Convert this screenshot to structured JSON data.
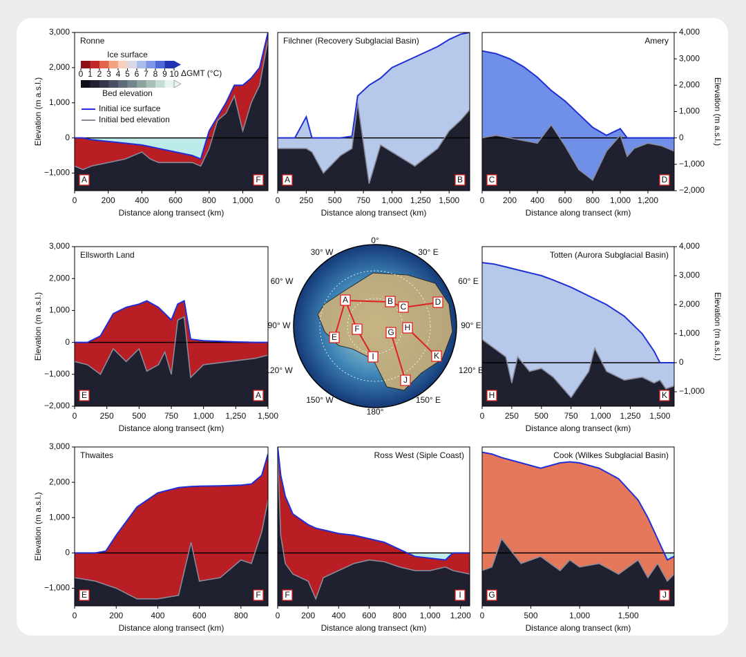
{
  "chart_data": [
    {
      "type": "area",
      "title": "Ronne",
      "xlabel": "Distance along transect (km)",
      "ylabel": "Elevation (m a.s.l.)",
      "start": "A",
      "end": "F",
      "fill_color": "#b81e24",
      "xlim": [
        0,
        1150
      ],
      "xticks": [
        0,
        200,
        400,
        600,
        800,
        {
          "value": 1000,
          "label": "1,000"
        }
      ],
      "ylim": [
        -1500,
        3000
      ],
      "yticks": [
        {
          "value": -1000,
          "label": "−1,000"
        },
        0,
        {
          "value": 1000,
          "label": "1,000"
        },
        {
          "value": 2000,
          "label": "2,000"
        },
        {
          "value": 3000,
          "label": "3,000"
        }
      ],
      "x": [
        0,
        50,
        100,
        200,
        300,
        400,
        450,
        500,
        600,
        700,
        750,
        800,
        850,
        900,
        950,
        1000,
        1050,
        1100,
        1150
      ],
      "surface": [
        0,
        0,
        -50,
        -100,
        -150,
        -200,
        -250,
        -300,
        -400,
        -500,
        -600,
        200,
        600,
        1000,
        1500,
        1500,
        1700,
        2000,
        3000
      ],
      "bed": [
        -800,
        -900,
        -800,
        -700,
        -600,
        -400,
        -600,
        -700,
        -700,
        -700,
        -800,
        -300,
        500,
        700,
        1200,
        200,
        1000,
        1500,
        2800
      ],
      "legend": [
        {
          "name": "Initial ice surface",
          "color": "#1f2fd6"
        },
        {
          "name": "Initial bed elevation",
          "color": "#8a8a9a"
        }
      ],
      "colorbar": {
        "title": "ΔGMT (°C)",
        "ice_label": "Ice surface",
        "bed_label": "Bed elevation",
        "ticks": [
          0,
          1,
          2,
          3,
          4,
          5,
          6,
          7,
          8,
          9,
          10
        ],
        "ice_colors": [
          "#8b0f14",
          "#c0282a",
          "#e0654a",
          "#f2a482",
          "#f6d0bd",
          "#d8d8e6",
          "#a9bde8",
          "#7e98e6",
          "#4e6ad8",
          "#2234b0"
        ],
        "bed_colors": [
          "#0f0f18",
          "#222233",
          "#35364a",
          "#4a4f63",
          "#5f6b78",
          "#74878c",
          "#8ca39f",
          "#a8c0ba",
          "#c6dcd6",
          "#e6f4f2"
        ]
      }
    },
    {
      "type": "area",
      "title": "Filchner (Recovery Subglacial Basin)",
      "xlabel": "Distance along transect (km)",
      "start": "A",
      "end": "B",
      "fill_color": "#b7c9ea",
      "xlim": [
        0,
        1680
      ],
      "xticks": [
        0,
        250,
        500,
        750,
        {
          "value": 1000,
          "label": "1,000"
        },
        {
          "value": 1250,
          "label": "1,250"
        },
        {
          "value": 1500,
          "label": "1,500"
        }
      ],
      "ylim": [
        -1500,
        3000
      ],
      "x": [
        0,
        150,
        250,
        300,
        400,
        550,
        650,
        700,
        800,
        900,
        1000,
        1200,
        1400,
        1500,
        1600,
        1680
      ],
      "surface": [
        0,
        0,
        600,
        0,
        0,
        0,
        50,
        1200,
        1500,
        1700,
        2000,
        2300,
        2600,
        2800,
        2950,
        3000
      ],
      "bed": [
        -300,
        -300,
        -300,
        -400,
        -1000,
        -500,
        -300,
        1000,
        -1300,
        -200,
        -400,
        -800,
        -300,
        200,
        500,
        800
      ]
    },
    {
      "type": "area",
      "title": "Amery",
      "xlabel": "Distance along transect (km)",
      "ylabel": "Elevation (m a.s.l.)",
      "start": "C",
      "end": "D",
      "fill_color": "#6f8fe8",
      "xlim": [
        0,
        1390
      ],
      "xticks": [
        0,
        200,
        400,
        600,
        800,
        {
          "value": 1000,
          "label": "1,000"
        },
        {
          "value": 1200,
          "label": "1,200"
        }
      ],
      "ylim": [
        -2000,
        4000
      ],
      "yticks": [
        {
          "value": -2000,
          "label": "−2,000"
        },
        {
          "value": -1000,
          "label": "−1,000"
        },
        0,
        {
          "value": 1000,
          "label": "1,000"
        },
        {
          "value": 2000,
          "label": "2,000"
        },
        {
          "value": 3000,
          "label": "3,000"
        },
        {
          "value": 4000,
          "label": "4,000"
        }
      ],
      "x": [
        0,
        100,
        200,
        300,
        400,
        500,
        600,
        700,
        800,
        900,
        1000,
        1050,
        1100,
        1200,
        1300,
        1390
      ],
      "surface": [
        3300,
        3200,
        3000,
        2700,
        2300,
        1800,
        1400,
        900,
        400,
        100,
        350,
        0,
        0,
        0,
        0,
        0
      ],
      "bed": [
        0,
        100,
        0,
        -100,
        -200,
        500,
        -300,
        -1200,
        -1600,
        -500,
        100,
        -700,
        -400,
        -200,
        -300,
        -500
      ]
    },
    {
      "type": "area",
      "title": "Ellsworth Land",
      "xlabel": "Distance along transect (km)",
      "ylabel": "Elevation (m a.s.l.)",
      "start": "E",
      "end": "A",
      "fill_color": "#b81e24",
      "xlim": [
        0,
        1500
      ],
      "xticks": [
        0,
        250,
        500,
        750,
        {
          "value": 1000,
          "label": "1,000"
        },
        {
          "value": 1250,
          "label": "1,250"
        },
        {
          "value": 1500,
          "label": "1,500"
        }
      ],
      "ylim": [
        -2000,
        3000
      ],
      "yticks": [
        {
          "value": -2000,
          "label": "−2,000"
        },
        {
          "value": -1000,
          "label": "−1,000"
        },
        0,
        {
          "value": 1000,
          "label": "1,000"
        },
        {
          "value": 2000,
          "label": "2,000"
        },
        {
          "value": 3000,
          "label": "3,000"
        }
      ],
      "x": [
        0,
        100,
        200,
        300,
        400,
        500,
        560,
        650,
        700,
        750,
        800,
        850,
        900,
        1000,
        1200,
        1400,
        1500
      ],
      "surface": [
        0,
        0,
        200,
        900,
        1100,
        1200,
        1300,
        1100,
        900,
        700,
        1200,
        1300,
        100,
        50,
        20,
        0,
        0
      ],
      "bed": [
        -600,
        -700,
        -1000,
        -200,
        -600,
        -200,
        -900,
        -700,
        -300,
        -1000,
        700,
        800,
        -1100,
        -700,
        -600,
        -500,
        -400
      ]
    },
    {
      "type": "area",
      "title": "Totten (Aurora Subglacial Basin)",
      "xlabel": "Distance along transect (km)",
      "ylabel": "Elevation (m a.s.l.)",
      "start": "H",
      "end": "K",
      "fill_color": "#b7c9ea",
      "xlim": [
        0,
        1620
      ],
      "xticks": [
        0,
        250,
        500,
        750,
        {
          "value": 1000,
          "label": "1,000"
        },
        {
          "value": 1250,
          "label": "1,250"
        },
        {
          "value": 1500,
          "label": "1,500"
        }
      ],
      "ylim": [
        -1500,
        4000
      ],
      "yticks": [
        {
          "value": -1000,
          "label": "−1,000"
        },
        0,
        {
          "value": 1000,
          "label": "1,000"
        },
        {
          "value": 2000,
          "label": "2,000"
        },
        {
          "value": 3000,
          "label": "3,000"
        },
        {
          "value": 4000,
          "label": "4,000"
        }
      ],
      "x": [
        0,
        100,
        200,
        250,
        300,
        400,
        500,
        600,
        750,
        900,
        950,
        1050,
        1200,
        1350,
        1450,
        1500,
        1550,
        1620
      ],
      "surface": [
        3450,
        3400,
        3300,
        3250,
        3200,
        3100,
        3000,
        2850,
        2600,
        2300,
        2200,
        2000,
        1600,
        1000,
        400,
        0,
        0,
        0
      ],
      "bed": [
        800,
        500,
        200,
        -700,
        200,
        -300,
        -200,
        -500,
        -1200,
        -300,
        500,
        -300,
        -600,
        -500,
        -700,
        -600,
        -900,
        -800
      ]
    },
    {
      "type": "area",
      "title": "Thwaites",
      "xlabel": "Distance along transect (km)",
      "ylabel": "Elevation (m a.s.l.)",
      "start": "E",
      "end": "F",
      "fill_color": "#b81e24",
      "xlim": [
        0,
        930
      ],
      "xticks": [
        0,
        200,
        400,
        600,
        800
      ],
      "ylim": [
        -1500,
        3000
      ],
      "yticks": [
        {
          "value": -1000,
          "label": "−1,000"
        },
        0,
        {
          "value": 1000,
          "label": "1,000"
        },
        {
          "value": 2000,
          "label": "2,000"
        },
        {
          "value": 3000,
          "label": "3,000"
        }
      ],
      "x": [
        0,
        100,
        150,
        200,
        300,
        400,
        500,
        560,
        600,
        700,
        800,
        850,
        900,
        930
      ],
      "surface": [
        0,
        0,
        50,
        500,
        1300,
        1700,
        1850,
        1880,
        1890,
        1900,
        1920,
        1950,
        2200,
        2800
      ],
      "bed": [
        -700,
        -800,
        -900,
        -1000,
        -1300,
        -1300,
        -1200,
        300,
        -800,
        -700,
        -200,
        -300,
        600,
        1500
      ]
    },
    {
      "type": "area",
      "title": "Ross West (Siple Coast)",
      "xlabel": "Distance along transect (km)",
      "start": "F",
      "end": "I",
      "fill_color": "#b81e24",
      "xlim": [
        0,
        1260
      ],
      "xticks": [
        0,
        200,
        400,
        600,
        800,
        {
          "value": 1000,
          "label": "1,000"
        },
        {
          "value": 1200,
          "label": "1,200"
        }
      ],
      "ylim": [
        -1500,
        3000
      ],
      "x": [
        0,
        20,
        50,
        100,
        200,
        250,
        300,
        400,
        500,
        600,
        700,
        800,
        900,
        1000,
        1100,
        1150,
        1260
      ],
      "surface": [
        3000,
        2200,
        1600,
        1100,
        800,
        700,
        650,
        550,
        500,
        400,
        300,
        100,
        -100,
        -150,
        -200,
        0,
        0
      ],
      "bed": [
        2800,
        500,
        -300,
        -600,
        -800,
        -1300,
        -700,
        -500,
        -300,
        -200,
        -250,
        -400,
        -500,
        -500,
        -400,
        -500,
        -600
      ]
    },
    {
      "type": "area",
      "title": "Cook (Wilkes Subglacial Basin)",
      "xlabel": "Distance along transect (km)",
      "start": "G",
      "end": "J",
      "fill_color": "#e5775a",
      "xlim": [
        0,
        1970
      ],
      "xticks": [
        0,
        500,
        {
          "value": 1000,
          "label": "1,000"
        },
        {
          "value": 1500,
          "label": "1,500"
        }
      ],
      "ylim": [
        -1500,
        3000
      ],
      "x": [
        0,
        100,
        200,
        400,
        600,
        800,
        900,
        1000,
        1200,
        1400,
        1600,
        1700,
        1800,
        1900,
        1970
      ],
      "surface": [
        2850,
        2800,
        2700,
        2550,
        2400,
        2550,
        2580,
        2550,
        2400,
        2100,
        1500,
        1000,
        400,
        -200,
        -100
      ],
      "bed": [
        -500,
        -400,
        400,
        -300,
        -100,
        -500,
        -200,
        -400,
        -300,
        -600,
        -200,
        -700,
        -300,
        -800,
        -600
      ]
    }
  ],
  "map": {
    "longitudes": [
      "0°",
      "30° E",
      "60° E",
      "90° E",
      "120° E",
      "150° E",
      "180°",
      "150° W",
      "120° W",
      "90° W",
      "60° W",
      "30° W"
    ],
    "sites": [
      "A",
      "B",
      "C",
      "D",
      "E",
      "F",
      "G",
      "H",
      "I",
      "J",
      "K"
    ]
  }
}
